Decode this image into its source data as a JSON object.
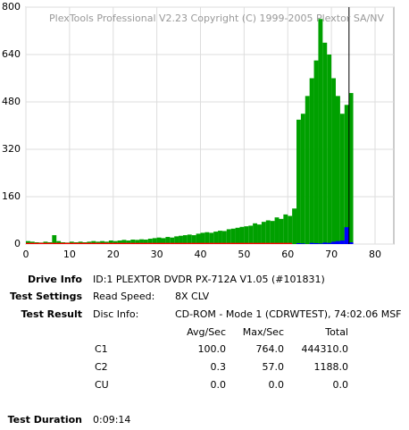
{
  "chart_data": {
    "type": "bar",
    "title": "PlexTools Professional V2.23 Copyright (C) 1999-2005 Plextor SA/NV",
    "x": [
      0,
      1,
      2,
      3,
      4,
      5,
      6,
      7,
      8,
      9,
      10,
      11,
      12,
      13,
      14,
      15,
      16,
      17,
      18,
      19,
      20,
      21,
      22,
      23,
      24,
      25,
      26,
      27,
      28,
      29,
      30,
      31,
      32,
      33,
      34,
      35,
      36,
      37,
      38,
      39,
      40,
      41,
      42,
      43,
      44,
      45,
      46,
      47,
      48,
      49,
      50,
      51,
      52,
      53,
      54,
      55,
      56,
      57,
      58,
      59,
      60,
      61,
      62,
      63,
      64,
      65,
      66,
      67,
      68,
      69,
      70,
      71,
      72,
      73,
      74
    ],
    "series": [
      {
        "color": "#00a000",
        "values": [
          10,
          8,
          6,
          5,
          8,
          6,
          30,
          10,
          6,
          5,
          8,
          6,
          8,
          6,
          8,
          10,
          8,
          10,
          8,
          12,
          10,
          12,
          14,
          12,
          15,
          14,
          16,
          15,
          18,
          20,
          22,
          20,
          24,
          22,
          26,
          28,
          30,
          32,
          30,
          35,
          38,
          40,
          38,
          42,
          45,
          44,
          50,
          52,
          55,
          58,
          60,
          62,
          70,
          66,
          75,
          80,
          78,
          90,
          85,
          100,
          95,
          120,
          420,
          440,
          500,
          560,
          620,
          760,
          680,
          640,
          560,
          500,
          440,
          470,
          510
        ]
      },
      {
        "color": "#0000ff",
        "values": [
          0,
          0,
          0,
          0,
          0,
          0,
          0,
          0,
          0,
          0,
          0,
          0,
          0,
          0,
          0,
          0,
          0,
          0,
          0,
          0,
          0,
          0,
          0,
          0,
          0,
          0,
          0,
          0,
          0,
          0,
          0,
          0,
          0,
          0,
          0,
          0,
          0,
          0,
          0,
          0,
          0,
          0,
          0,
          0,
          0,
          0,
          0,
          0,
          0,
          0,
          0,
          0,
          0,
          0,
          0,
          0,
          0,
          0,
          0,
          0,
          2,
          0,
          3,
          2,
          0,
          4,
          3,
          2,
          5,
          4,
          8,
          10,
          12,
          57,
          6
        ]
      },
      {
        "color": "#ff0000",
        "values": [
          4,
          4,
          4,
          4,
          4,
          4,
          4,
          4,
          4,
          4,
          4,
          4,
          4,
          4,
          4,
          4,
          4,
          4,
          4,
          4,
          4,
          4,
          4,
          4,
          4,
          4,
          4,
          4,
          4,
          4,
          4,
          4,
          4,
          4,
          4,
          4,
          4,
          4,
          4,
          4,
          4,
          4,
          4,
          4,
          4,
          4,
          4,
          4,
          4,
          4,
          4,
          4,
          4,
          4,
          4,
          4,
          4,
          4,
          4,
          4,
          4,
          0,
          0,
          0,
          0,
          0,
          0,
          0,
          0,
          0,
          0,
          0,
          0,
          0,
          0
        ]
      }
    ],
    "end_marker": 74.03,
    "xlim": [
      0,
      84.3
    ],
    "xticks": [
      0,
      10,
      20,
      30,
      40,
      50,
      60,
      70,
      80
    ],
    "ylim": [
      0,
      800
    ],
    "yticks": [
      0,
      160,
      320,
      480,
      640,
      800
    ],
    "grid": true
  },
  "info": {
    "drive_label": "Drive Info",
    "drive": "ID:1 PLEXTOR DVDR  PX-712A V1.05 (#101831)",
    "settings_label": "Test Settings",
    "speed_label": "Read Speed:",
    "speed": "8X CLV",
    "result_label": "Test Result",
    "disc_label": "Disc Info:",
    "disc": "CD-ROM - Mode 1 (CDRWTEST), 74:02.06 MSF",
    "table": {
      "header": [
        "Avg/Sec",
        "Max/Sec",
        "Total"
      ],
      "rows": [
        [
          "C1",
          "100.0",
          "764.0",
          "444310.0"
        ],
        [
          "C2",
          "0.3",
          "57.0",
          "1188.0"
        ],
        [
          "CU",
          "0.0",
          "0.0",
          "0.0"
        ]
      ]
    },
    "duration_label": "Test Duration",
    "duration": "0:09:14"
  }
}
